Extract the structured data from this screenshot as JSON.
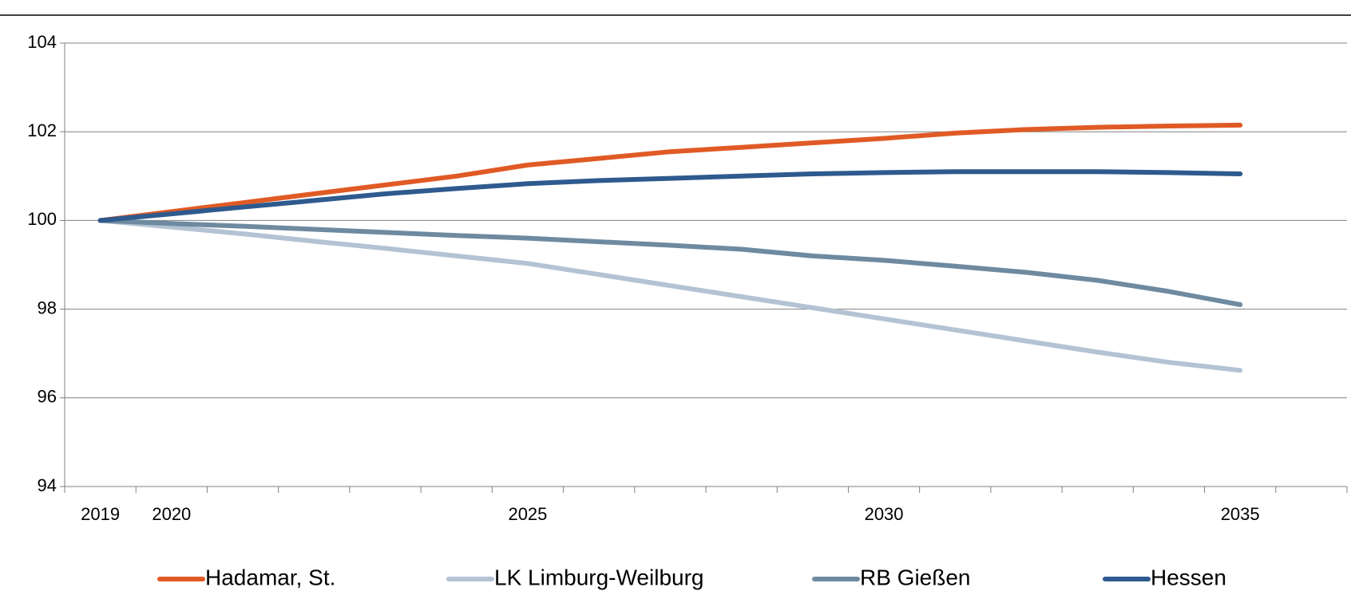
{
  "chart_data": {
    "type": "line",
    "categories": [
      "2019",
      "2020",
      null,
      null,
      null,
      null,
      "2025",
      null,
      null,
      null,
      null,
      "2030",
      null,
      null,
      null,
      null,
      "2035",
      null
    ],
    "series": [
      {
        "name": "Hadamar, St.",
        "color": "#e05a25",
        "values": [
          100,
          100.2,
          100.4,
          100.6,
          100.8,
          101.0,
          101.25,
          101.4,
          101.55,
          101.65,
          101.75,
          101.85,
          101.97,
          102.05,
          102.1,
          102.13,
          102.15,
          null
        ]
      },
      {
        "name": "LK Limburg-Weilburg",
        "color": "#b3c3d3",
        "values": [
          100,
          99.85,
          99.7,
          99.53,
          99.37,
          99.2,
          99.03,
          98.78,
          98.53,
          98.28,
          98.03,
          97.78,
          97.53,
          97.28,
          97.03,
          96.8,
          96.62,
          null
        ]
      },
      {
        "name": "RB Gießen",
        "color": "#6e8aa0",
        "values": [
          100,
          99.93,
          99.87,
          99.8,
          99.73,
          99.66,
          99.6,
          99.52,
          99.44,
          99.35,
          99.2,
          99.1,
          98.97,
          98.83,
          98.65,
          98.4,
          98.1,
          null
        ]
      },
      {
        "name": "Hessen",
        "color": "#2e5a8e",
        "values": [
          100,
          100.15,
          100.3,
          100.45,
          100.6,
          100.72,
          100.83,
          100.9,
          100.95,
          101.0,
          101.05,
          101.08,
          101.1,
          101.1,
          101.1,
          101.08,
          101.05,
          null
        ]
      }
    ],
    "ylim": [
      94,
      104
    ],
    "yticks": [
      94,
      96,
      98,
      100,
      102,
      104
    ],
    "grid": true,
    "legend": "bottom"
  }
}
